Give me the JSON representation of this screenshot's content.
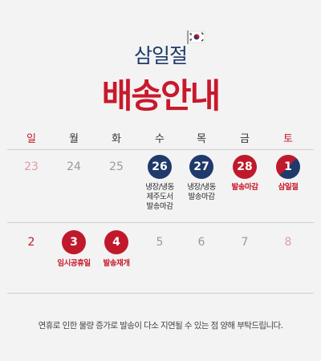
{
  "header": {
    "subtitle": "삼일절",
    "title": "배송안내",
    "flag_icon": "korea-flag-icon"
  },
  "weekdays": [
    "일",
    "월",
    "화",
    "수",
    "목",
    "금",
    "토"
  ],
  "week1": {
    "days": [
      "23",
      "24",
      "25",
      "26",
      "27",
      "28",
      "1"
    ],
    "labels": {
      "wed": "냉장/냉동\n제주도서\n발송마감",
      "thu": "냉장/냉동\n발송마감",
      "fri": "발송마감",
      "sat": "삼일절"
    }
  },
  "week2": {
    "days": [
      "2",
      "3",
      "4",
      "5",
      "6",
      "7",
      "8"
    ],
    "labels": {
      "mon": "임시공휴일",
      "tue": "발송재개"
    }
  },
  "footer": "연휴로 인한 물량 증가로 발송이 다소 지연될 수 있는 점 양해 부탁드립니다.",
  "colors": {
    "navy": "#1f3a6b",
    "red": "#c0192c",
    "background": "#f3f3f3"
  }
}
